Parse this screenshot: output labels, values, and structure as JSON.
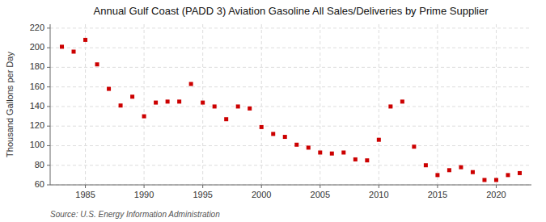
{
  "chart_data": {
    "type": "scatter",
    "title": "Annual Gulf Coast (PADD 3) Aviation Gasoline All Sales/Deliveries by Prime Supplier",
    "ylabel": "Thousand Gallons per Day",
    "source": "Source: U.S. Energy Information Administration",
    "x": [
      1983,
      1984,
      1985,
      1986,
      1987,
      1988,
      1989,
      1990,
      1991,
      1992,
      1993,
      1994,
      1995,
      1996,
      1997,
      1998,
      1999,
      2000,
      2001,
      2002,
      2003,
      2004,
      2005,
      2006,
      2007,
      2008,
      2009,
      2010,
      2011,
      2012,
      2013,
      2014,
      2015,
      2016,
      2017,
      2018,
      2019,
      2020,
      2021,
      2022
    ],
    "values": [
      201,
      196,
      208,
      183,
      158,
      141,
      150,
      130,
      144,
      145,
      145,
      163,
      144,
      140,
      127,
      140,
      138,
      119,
      112,
      109,
      101,
      98,
      93,
      92,
      93,
      86,
      85,
      106,
      140,
      145,
      99,
      80,
      70,
      75,
      78,
      73,
      65,
      65,
      70,
      72
    ],
    "color": "#cc0000",
    "marker": "square",
    "xlim": [
      1982.0,
      2023.0
    ],
    "ylim": [
      60,
      224
    ],
    "xticks": [
      1985,
      1990,
      1995,
      2000,
      2005,
      2010,
      2015,
      2020
    ],
    "yticks": [
      60,
      80,
      100,
      120,
      140,
      160,
      180,
      200,
      220
    ],
    "grid": true
  }
}
